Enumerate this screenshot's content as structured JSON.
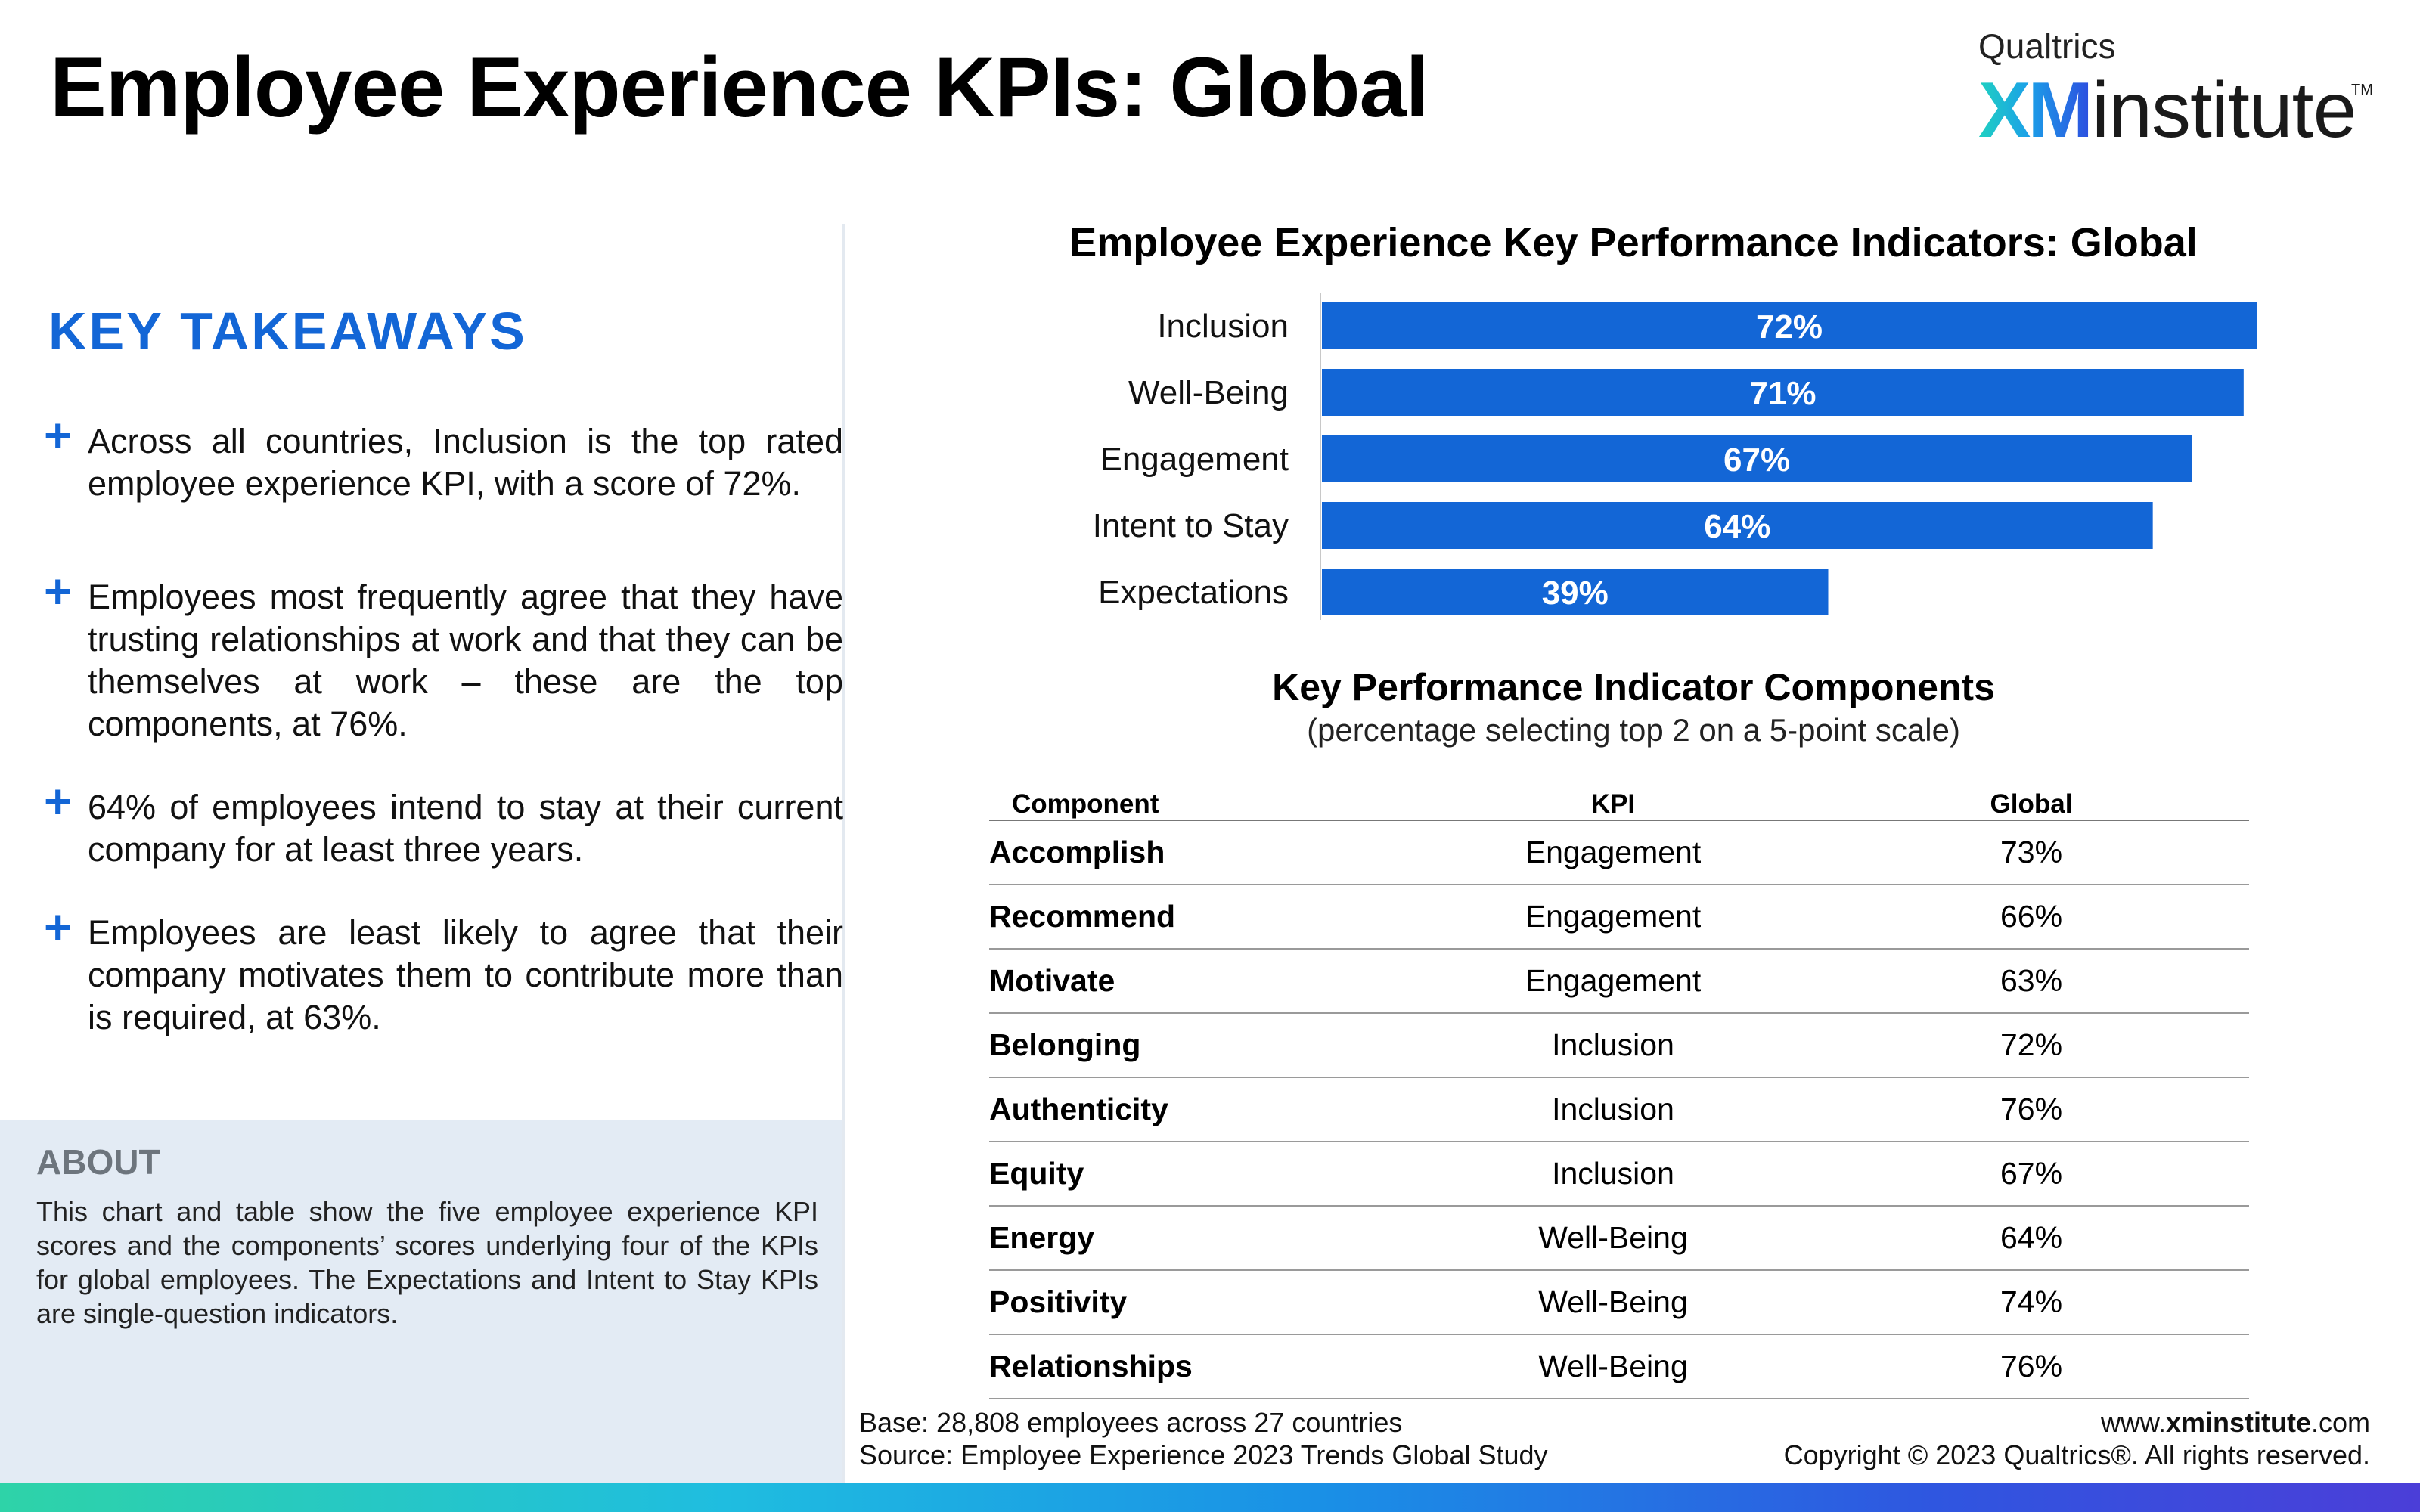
{
  "page": {
    "title": "Employee Experience KPIs: Global"
  },
  "logo": {
    "brand": "Qualtrics",
    "xm": "XM",
    "institute": "institute",
    "tm": "TM"
  },
  "takeaways": {
    "heading": "KEY TAKEAWAYS",
    "items": [
      "Across all countries, Inclusion is the top rated employee experience KPI, with a score of 72%.",
      "Employees most frequently agree that they have trusting relationships at work and that they can be themselves at work – these are the top components, at 76%.",
      "64% of employees intend to stay at their current company for at least three years.",
      "Employees are least likely to agree that their company motivates them to contribute more than is required, at 63%."
    ]
  },
  "about": {
    "heading": "ABOUT",
    "text": "This chart and table show the five employee experience KPI scores and the components’ scores underlying four of the KPIs for global employees. The Expectations and Intent to Stay KPIs are single-question indicators."
  },
  "chart_data": {
    "type": "bar",
    "orientation": "horizontal",
    "title": "Employee Experience Key Performance Indicators: Global",
    "categories": [
      "Inclusion",
      "Well-Being",
      "Engagement",
      "Intent to Stay",
      "Expectations"
    ],
    "values": [
      72,
      71,
      67,
      64,
      39
    ],
    "value_labels": [
      "72%",
      "71%",
      "67%",
      "64%",
      "39%"
    ],
    "xlim": [
      0,
      72
    ],
    "bar_color": "#1366d6",
    "grid": false
  },
  "table": {
    "title": "Key Performance Indicator Components",
    "subtitle": "(percentage selecting top 2 on a 5-point scale)",
    "headers": [
      "Component",
      "KPI",
      "Global"
    ],
    "rows": [
      [
        "Accomplish",
        "Engagement",
        "73%"
      ],
      [
        "Recommend",
        "Engagement",
        "66%"
      ],
      [
        "Motivate",
        "Engagement",
        "63%"
      ],
      [
        "Belonging",
        "Inclusion",
        "72%"
      ],
      [
        "Authenticity",
        "Inclusion",
        "76%"
      ],
      [
        "Equity",
        "Inclusion",
        "67%"
      ],
      [
        "Energy",
        "Well-Being",
        "64%"
      ],
      [
        "Positivity",
        "Well-Being",
        "74%"
      ],
      [
        "Relationships",
        "Well-Being",
        "76%"
      ]
    ]
  },
  "footer": {
    "base": "Base: 28,808 employees across 27 countries",
    "source": "Source: Employee Experience 2023 Trends Global Study",
    "website_prefix": "www.",
    "website_bold": "xminstitute",
    "website_suffix": ".com",
    "copyright": "Copyright © 2023 Qualtrics®. All rights reserved."
  },
  "colors": {
    "accent": "#1366d6",
    "about_bg": "#e3ebf4"
  }
}
